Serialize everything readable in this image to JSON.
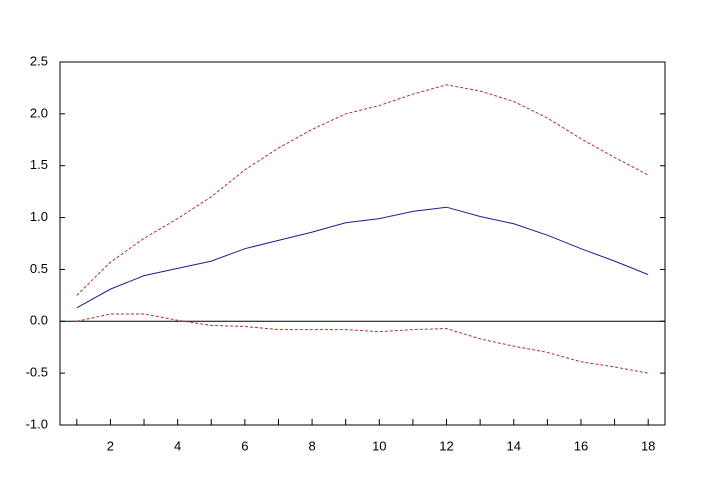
{
  "chart_data": {
    "type": "line",
    "x": [
      1,
      2,
      3,
      4,
      5,
      6,
      7,
      8,
      9,
      10,
      11,
      12,
      13,
      14,
      15,
      16,
      17,
      18
    ],
    "series": [
      {
        "color": "#1f1f8f",
        "dashed": false,
        "values": [
          0.13,
          0.31,
          0.44,
          0.51,
          0.58,
          0.7,
          0.78,
          0.86,
          0.95,
          0.99,
          1.06,
          1.1,
          1.01,
          0.94,
          0.83,
          0.7,
          0.58,
          0.45
        ]
      },
      {
        "color": "#b03030",
        "dashed": true,
        "values": [
          0.25,
          0.57,
          0.8,
          0.99,
          1.2,
          1.46,
          1.67,
          1.85,
          2.0,
          2.08,
          2.19,
          2.28,
          2.22,
          2.12,
          1.96,
          1.76,
          1.58,
          1.41
        ]
      },
      {
        "color": "#b03030",
        "dashed": true,
        "values": [
          0.0,
          0.07,
          0.07,
          0.01,
          -0.04,
          -0.05,
          -0.08,
          -0.08,
          -0.08,
          -0.1,
          -0.08,
          -0.07,
          -0.17,
          -0.24,
          -0.3,
          -0.39,
          -0.44,
          -0.5
        ]
      }
    ],
    "xlim": [
      0.5,
      18.5
    ],
    "xticks": [
      2,
      4,
      6,
      8,
      10,
      12,
      14,
      16,
      18
    ],
    "xminorticks": [
      1,
      3,
      5,
      7,
      9,
      11,
      13,
      15,
      17
    ],
    "ylim": [
      -1.0,
      2.5
    ],
    "yticks": [
      {
        "value": -1.0,
        "label": "-1.0"
      },
      -0.5,
      {
        "value": 0.0,
        "label": "0.0"
      },
      0.5,
      {
        "value": 1.0,
        "label": "1.0"
      },
      1.5,
      {
        "value": 2.0,
        "label": "2.0"
      },
      2.5
    ],
    "zero_line": true,
    "grid": false
  }
}
